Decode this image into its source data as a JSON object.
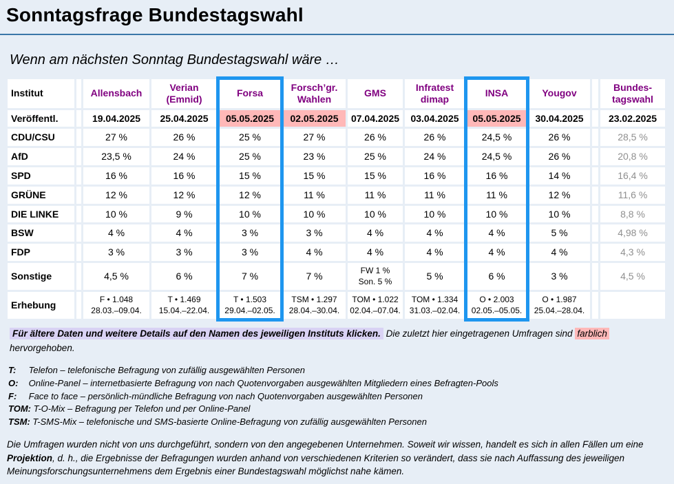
{
  "page": {
    "title": "Sonntagsfrage Bundestagswahl",
    "subtitle": "Wenn am nächsten Sonntag Bundestagswahl wäre …"
  },
  "colors": {
    "background": "#e7eef6",
    "rule_blue": "#3a76a8",
    "institute_purple": "#800080",
    "highlight_pink": "#ffb8b8",
    "highlight_lavender": "#d9d2f4",
    "frame_blue": "#1e96ef",
    "result_gray": "#8f8f8f"
  },
  "table": {
    "corner_label": "Institut",
    "published_label": "Veröffentl.",
    "survey_label": "Erhebung",
    "parties": [
      "CDU/CSU",
      "AfD",
      "SPD",
      "GRÜNE",
      "DIE LINKE",
      "BSW",
      "FDP",
      "Sonstige"
    ],
    "institutes": [
      {
        "name": "Allensbach",
        "published": "19.04.2025",
        "published_highlight": false,
        "framed": false,
        "result_column": false,
        "values": [
          "27 %",
          "23,5 %",
          "16 %",
          "12 %",
          "10 %",
          "4 %",
          "3 %",
          "4,5 %"
        ],
        "survey": "F • 1.048\n28.03.–09.04."
      },
      {
        "name": "Verian\n(Emnid)",
        "published": "25.04.2025",
        "published_highlight": false,
        "framed": false,
        "result_column": false,
        "values": [
          "26 %",
          "24 %",
          "16 %",
          "12 %",
          "9 %",
          "4 %",
          "3 %",
          "6 %"
        ],
        "survey": "T • 1.469\n15.04.–22.04."
      },
      {
        "name": "Forsa",
        "published": "05.05.2025",
        "published_highlight": true,
        "framed": true,
        "result_column": false,
        "values": [
          "25 %",
          "25 %",
          "15 %",
          "12 %",
          "10 %",
          "3 %",
          "3 %",
          "7 %"
        ],
        "survey": "T • 1.503\n29.04.–02.05."
      },
      {
        "name": "Forsch’gr.\nWahlen",
        "published": "02.05.2025",
        "published_highlight": true,
        "framed": false,
        "result_column": false,
        "values": [
          "27 %",
          "23 %",
          "15 %",
          "11 %",
          "10 %",
          "3 %",
          "4 %",
          "7 %"
        ],
        "survey": "TSM • 1.297\n28.04.–30.04."
      },
      {
        "name": "GMS",
        "published": "07.04.2025",
        "published_highlight": false,
        "framed": false,
        "result_column": false,
        "values": [
          "26 %",
          "25 %",
          "15 %",
          "11 %",
          "10 %",
          "4 %",
          "4 %",
          "FW 1 %\nSon. 5 %"
        ],
        "survey": "TOM • 1.022\n02.04.–07.04."
      },
      {
        "name": "Infratest\ndimap",
        "published": "03.04.2025",
        "published_highlight": false,
        "framed": false,
        "result_column": false,
        "values": [
          "26 %",
          "24 %",
          "16 %",
          "11 %",
          "10 %",
          "4 %",
          "4 %",
          "5 %"
        ],
        "survey": "TOM • 1.334\n31.03.–02.04."
      },
      {
        "name": "INSA",
        "published": "05.05.2025",
        "published_highlight": true,
        "framed": true,
        "result_column": false,
        "values": [
          "24,5 %",
          "24,5 %",
          "16 %",
          "11 %",
          "10 %",
          "4 %",
          "4 %",
          "6 %"
        ],
        "survey": "O • 2.003\n02.05.–05.05."
      },
      {
        "name": "Yougov",
        "published": "30.04.2025",
        "published_highlight": false,
        "framed": false,
        "result_column": false,
        "values": [
          "26 %",
          "26 %",
          "14 %",
          "12 %",
          "10 %",
          "5 %",
          "4 %",
          "3 %"
        ],
        "survey": "O • 1.987\n25.04.–28.04."
      },
      {
        "name": "Bundes-\ntagswahl",
        "published": "23.02.2025",
        "published_highlight": false,
        "framed": false,
        "result_column": true,
        "values": [
          "28,5 %",
          "20,8 %",
          "16,4 %",
          "11,6 %",
          "8,8 %",
          "4,98 %",
          "4,3 %",
          "4,5 %"
        ],
        "survey": ""
      }
    ]
  },
  "note": {
    "link_part": "Für ältere Daten und weitere Details auf den Namen des jeweiligen Instituts klicken.",
    "middle": " Die zuletzt hier eingetragenen Umfragen sind ",
    "highlight_word": "farblich",
    "tail": " hervorgehoben."
  },
  "legend": [
    {
      "term": "T:",
      "text": "Telefon – telefonische Befragung von zufällig ausgewählten Personen"
    },
    {
      "term": "O:",
      "text": "Online-Panel – internetbasierte Befragung von nach Quotenvorgaben ausgewählten Mitgliedern eines Befragten-Pools"
    },
    {
      "term": "F:",
      "text": "Face to face – persönlich-mündliche Befragung von nach Quotenvorgaben ausgewählten Personen"
    },
    {
      "term": "TOM:",
      "text": "T-O-Mix – Befragung per Telefon und per Online-Panel"
    },
    {
      "term": "TSM:",
      "text": "T-SMS-Mix – telefonische und SMS-basierte Online-Befragung von zufällig ausgewählten Personen"
    }
  ],
  "footer": {
    "before": "Die Umfragen wurden nicht von uns durchgeführt, sondern von den angegebenen Unternehmen. Soweit wir wissen, handelt es sich in allen Fällen um eine ",
    "bold_word": "Projektion",
    "after": ", d. h., die Ergebnisse der Befragungen wurden anhand von verschiedenen Kriterien so verändert, dass sie nach Auffassung des jeweiligen Meinungsforschungsunternehmens dem Ergebnis einer Bundestagswahl möglichst nahe kämen."
  }
}
